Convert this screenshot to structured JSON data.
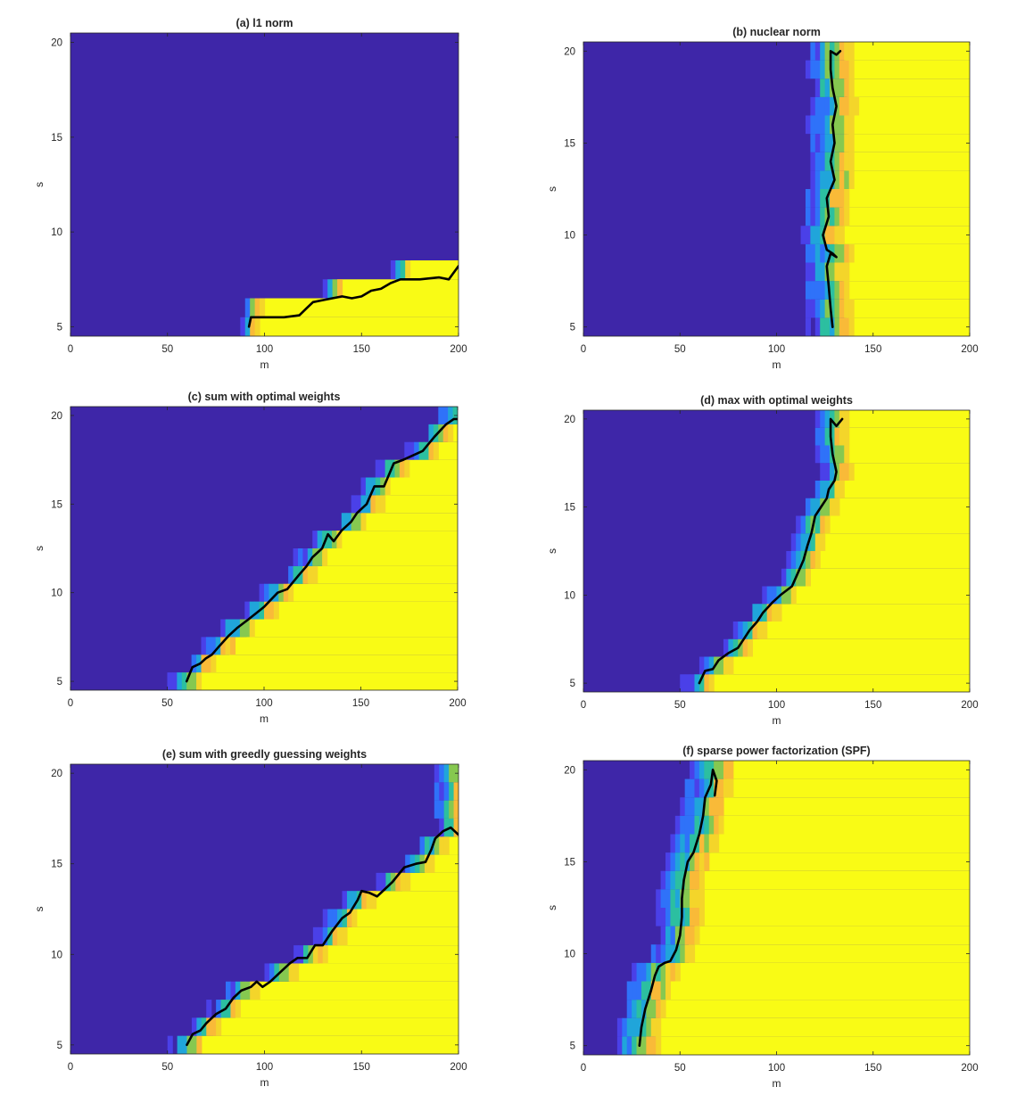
{
  "colors": {
    "low": "#3e26a8",
    "high": "#f9fb15",
    "transition": [
      "#4a40e8",
      "#2f72f9",
      "#20a5da",
      "#2cbfa0",
      "#86c850",
      "#f9ba38",
      "#f4d52a"
    ],
    "curve": "#000000",
    "axis": "#262626"
  },
  "chart_data": [
    {
      "type": "heatmap",
      "title": "(a) l1 norm",
      "xlabel": "m",
      "ylabel": "s",
      "xlim": [
        0,
        200
      ],
      "ylim": [
        4.5,
        20.5
      ],
      "xticks": [
        "0",
        "50",
        "100",
        "150",
        "200"
      ],
      "yticks": [
        "5",
        "10",
        "15",
        "20"
      ],
      "transition_width": 1,
      "boundary": [
        [
          92,
          5
        ],
        [
          93,
          5.5
        ],
        [
          100,
          5.5
        ],
        [
          110,
          5.5
        ],
        [
          118,
          5.6
        ],
        [
          122,
          6
        ],
        [
          125,
          6.3
        ],
        [
          130,
          6.4
        ],
        [
          135,
          6.5
        ],
        [
          140,
          6.6
        ],
        [
          145,
          6.5
        ],
        [
          150,
          6.6
        ],
        [
          155,
          6.9
        ],
        [
          160,
          7
        ],
        [
          165,
          7.3
        ],
        [
          170,
          7.5
        ],
        [
          180,
          7.5
        ],
        [
          190,
          7.6
        ],
        [
          195,
          7.5
        ],
        [
          200,
          8.2
        ]
      ]
    },
    {
      "type": "heatmap",
      "title": "(b) nuclear norm",
      "xlabel": "m",
      "ylabel": "s",
      "xlim": [
        0,
        200
      ],
      "ylim": [
        4.5,
        20.5
      ],
      "xticks": [
        "0",
        "50",
        "100",
        "150",
        "200"
      ],
      "yticks": [
        "5",
        "10",
        "15",
        "20"
      ],
      "transition_width": 3,
      "boundary": [
        [
          129,
          5
        ],
        [
          128,
          6
        ],
        [
          127,
          7.2
        ],
        [
          126,
          8.3
        ],
        [
          128,
          9
        ],
        [
          131,
          8.8
        ],
        [
          129,
          9
        ],
        [
          126,
          9.2
        ],
        [
          124,
          10
        ],
        [
          127,
          11
        ],
        [
          126,
          12
        ],
        [
          130,
          13
        ],
        [
          128,
          14
        ],
        [
          130,
          15
        ],
        [
          129,
          16
        ],
        [
          131,
          17
        ],
        [
          129,
          18
        ],
        [
          128,
          19
        ],
        [
          128,
          20
        ],
        [
          131,
          19.8
        ],
        [
          133,
          20
        ]
      ]
    },
    {
      "type": "heatmap",
      "title": "(c) sum with optimal weights",
      "xlabel": "m",
      "ylabel": "s",
      "xlim": [
        0,
        200
      ],
      "ylim": [
        4.5,
        20.5
      ],
      "xticks": [
        "0",
        "50",
        "100",
        "150",
        "200"
      ],
      "yticks": [
        "5",
        "10",
        "15",
        "20"
      ],
      "transition_width": 2,
      "boundary": [
        [
          60,
          5
        ],
        [
          63,
          5.8
        ],
        [
          67,
          6
        ],
        [
          70,
          6.3
        ],
        [
          73,
          6.5
        ],
        [
          77,
          7
        ],
        [
          82,
          7.6
        ],
        [
          86,
          8
        ],
        [
          92,
          8.5
        ],
        [
          100,
          9.2
        ],
        [
          107,
          10
        ],
        [
          112,
          10.2
        ],
        [
          118,
          11
        ],
        [
          122,
          11.5
        ],
        [
          125,
          12
        ],
        [
          130,
          12.5
        ],
        [
          133,
          13.3
        ],
        [
          136,
          12.9
        ],
        [
          140,
          13.5
        ],
        [
          145,
          14
        ],
        [
          148,
          14.5
        ],
        [
          153,
          15
        ],
        [
          157,
          16
        ],
        [
          162,
          16
        ],
        [
          167,
          17.3
        ],
        [
          172,
          17.5
        ],
        [
          182,
          18
        ],
        [
          188,
          18.8
        ],
        [
          194,
          19.5
        ],
        [
          198,
          19.8
        ],
        [
          200,
          19.8
        ]
      ]
    },
    {
      "type": "heatmap",
      "title": "(d) max with optimal weights",
      "xlabel": "m",
      "ylabel": "s",
      "xlim": [
        0,
        200
      ],
      "ylim": [
        4.5,
        20.5
      ],
      "xticks": [
        "0",
        "50",
        "100",
        "150",
        "200"
      ],
      "yticks": [
        "5",
        "10",
        "15",
        "20"
      ],
      "transition_width": 2,
      "boundary": [
        [
          60,
          5
        ],
        [
          63,
          5.7
        ],
        [
          67,
          5.8
        ],
        [
          70,
          6.3
        ],
        [
          75,
          6.7
        ],
        [
          80,
          7
        ],
        [
          83,
          7.5
        ],
        [
          86,
          8
        ],
        [
          90,
          8.5
        ],
        [
          93,
          9
        ],
        [
          98,
          9.6
        ],
        [
          102,
          10
        ],
        [
          108,
          10.5
        ],
        [
          112,
          11.5
        ],
        [
          114,
          12
        ],
        [
          116,
          12.8
        ],
        [
          118,
          13.5
        ],
        [
          120,
          14.5
        ],
        [
          123,
          15
        ],
        [
          126,
          15.5
        ],
        [
          127,
          16
        ],
        [
          130,
          16.5
        ],
        [
          131,
          17
        ],
        [
          129,
          18
        ],
        [
          128,
          19
        ],
        [
          128,
          20
        ],
        [
          131,
          19.6
        ],
        [
          134,
          20
        ]
      ]
    },
    {
      "type": "heatmap",
      "title": "(e) sum with greedly guessing weights",
      "xlabel": "m",
      "ylabel": "s",
      "xlim": [
        0,
        200
      ],
      "ylim": [
        4.5,
        20.5
      ],
      "xticks": [
        "0",
        "50",
        "100",
        "150",
        "200"
      ],
      "yticks": [
        "5",
        "10",
        "15",
        "20"
      ],
      "transition_width": 2,
      "boundary": [
        [
          60,
          5
        ],
        [
          63,
          5.6
        ],
        [
          67,
          5.8
        ],
        [
          70,
          6.2
        ],
        [
          75,
          6.7
        ],
        [
          80,
          7
        ],
        [
          84,
          7.6
        ],
        [
          88,
          8
        ],
        [
          93,
          8.2
        ],
        [
          96,
          8.5
        ],
        [
          99,
          8.2
        ],
        [
          103,
          8.5
        ],
        [
          108,
          9
        ],
        [
          113,
          9.5
        ],
        [
          117,
          9.8
        ],
        [
          122,
          9.8
        ],
        [
          126,
          10.5
        ],
        [
          130,
          10.5
        ],
        [
          135,
          11.3
        ],
        [
          140,
          12
        ],
        [
          144,
          12.3
        ],
        [
          148,
          13
        ],
        [
          150,
          13.5
        ],
        [
          154,
          13.4
        ],
        [
          158,
          13.2
        ],
        [
          162,
          13.6
        ],
        [
          166,
          14
        ],
        [
          172,
          14.8
        ],
        [
          178,
          15
        ],
        [
          183,
          15.1
        ],
        [
          186,
          15.8
        ],
        [
          188,
          16.4
        ],
        [
          192,
          16.8
        ],
        [
          196,
          17
        ],
        [
          200,
          16.6
        ]
      ]
    },
    {
      "type": "heatmap",
      "title": "(f) sparse power factorization (SPF)",
      "xlabel": "m",
      "ylabel": "s",
      "xlim": [
        0,
        200
      ],
      "ylim": [
        4.5,
        20.5
      ],
      "xticks": [
        "0",
        "50",
        "100",
        "150",
        "200"
      ],
      "yticks": [
        "5",
        "10",
        "15",
        "20"
      ],
      "transition_width": 3,
      "boundary": [
        [
          29,
          5
        ],
        [
          30,
          6
        ],
        [
          32,
          7
        ],
        [
          35,
          8
        ],
        [
          37,
          8.8
        ],
        [
          39,
          9.3
        ],
        [
          42,
          9.5
        ],
        [
          45,
          9.6
        ],
        [
          48,
          10.2
        ],
        [
          50,
          11
        ],
        [
          51,
          12
        ],
        [
          51,
          13
        ],
        [
          52,
          14
        ],
        [
          54,
          15
        ],
        [
          57,
          15.5
        ],
        [
          60,
          16.5
        ],
        [
          62,
          17.5
        ],
        [
          63,
          18.5
        ],
        [
          66,
          19.2
        ],
        [
          67,
          20
        ],
        [
          69,
          19.4
        ],
        [
          68,
          18.6
        ]
      ]
    }
  ]
}
